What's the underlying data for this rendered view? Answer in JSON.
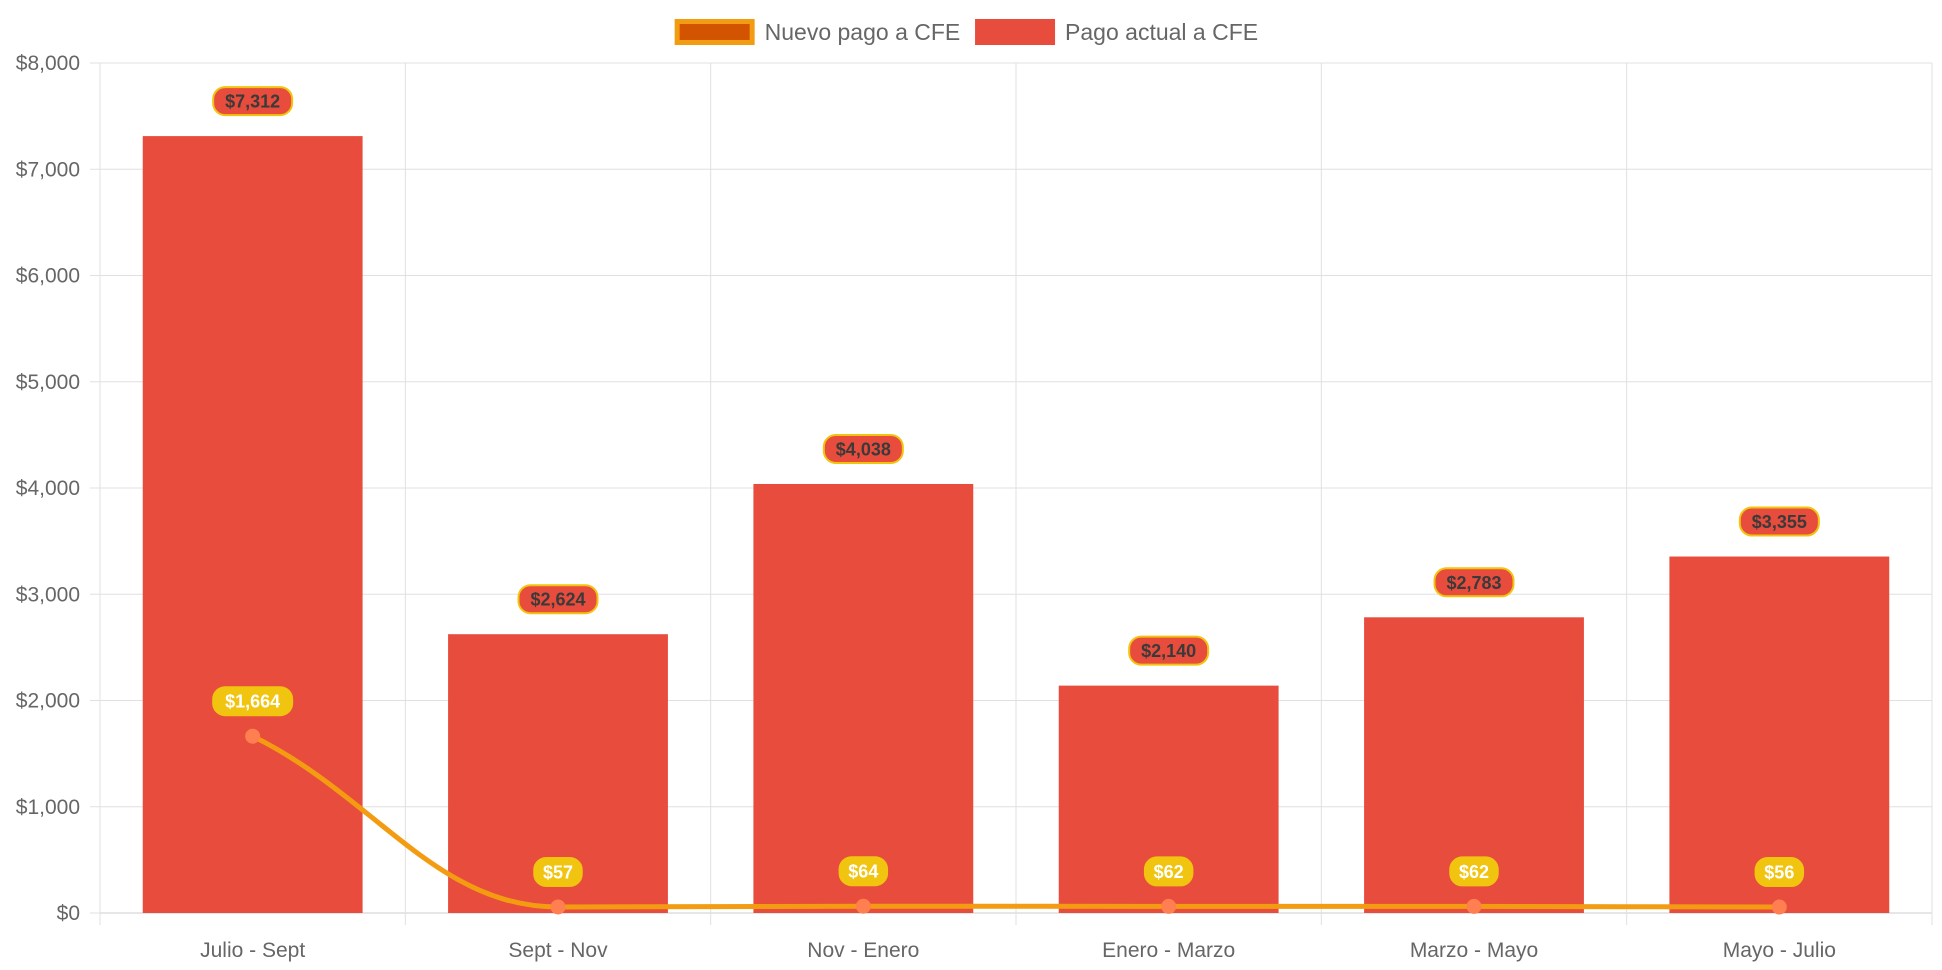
{
  "chart_data": {
    "type": "bar",
    "categories": [
      "Julio - Sept",
      "Sept - Nov",
      "Nov - Enero",
      "Enero - Marzo",
      "Marzo - Mayo",
      "Mayo - Julio"
    ],
    "series": [
      {
        "name": "Pago actual a CFE",
        "kind": "bar",
        "color": "#e74c3c",
        "values": [
          7312,
          2624,
          4038,
          2140,
          2783,
          3355
        ],
        "labels": [
          "$7,312",
          "$2,624",
          "$4,038",
          "$2,140",
          "$2,783",
          "$3,355"
        ]
      },
      {
        "name": "Nuevo pago a CFE",
        "kind": "line",
        "color": "#f39c12",
        "legend_fill": "#d35400",
        "point_color": "#ff7f50",
        "values": [
          1664,
          57,
          64,
          62,
          62,
          56
        ],
        "labels": [
          "$1,664",
          "$57",
          "$64",
          "$62",
          "$62",
          "$56"
        ]
      }
    ],
    "y_ticks": [
      "$0",
      "$1,000",
      "$2,000",
      "$3,000",
      "$4,000",
      "$5,000",
      "$6,000",
      "$7,000",
      "$8,000"
    ],
    "ylim": [
      0,
      8000
    ],
    "title": "",
    "xlabel": "",
    "ylabel": "",
    "grid": true,
    "legend_position": "top-center",
    "colors": {
      "bar_label_bg": "#e74c3c",
      "bar_label_border": "#f1c40f",
      "line_label_bg": "#f1c40f",
      "grid": "#e0e0e0"
    }
  }
}
